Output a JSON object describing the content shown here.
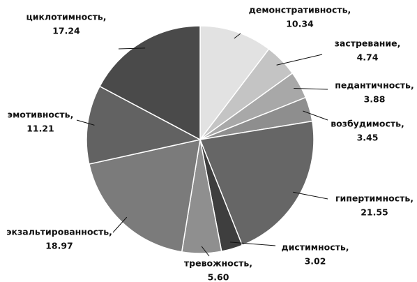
{
  "chart_data": {
    "type": "pie",
    "categories": [
      "демонстративность,",
      "застревание,",
      "педантичность,",
      "возбудимость,",
      "гипертимность,",
      "дистимность,",
      "тревожность,",
      "экзальтированность,",
      "эмотивность,",
      "циклотимность,"
    ],
    "values": [
      10.34,
      4.74,
      3.88,
      3.45,
      21.55,
      3.02,
      5.6,
      18.97,
      11.21,
      17.24
    ],
    "value_labels": [
      "10.34",
      "4.74",
      "3.88",
      "3.45",
      "21.55",
      "3.02",
      "5.60",
      "18.97",
      "11.21",
      "17.24"
    ],
    "colors": [
      "#e2e2e2",
      "#c4c4c4",
      "#a8a8a8",
      "#8e8e8e",
      "#666666",
      "#3e3e3e",
      "#8f8f8f",
      "#7b7b7b",
      "#626262",
      "#4a4a4a"
    ]
  }
}
